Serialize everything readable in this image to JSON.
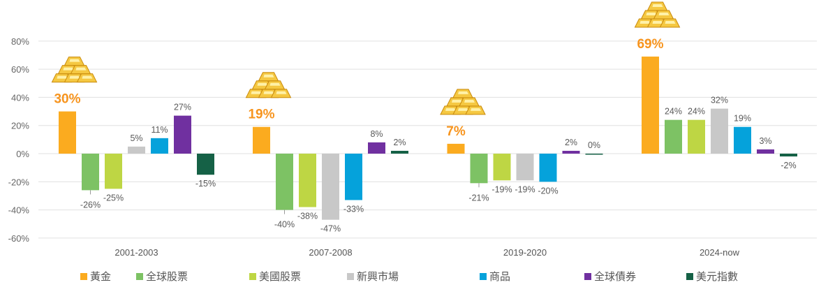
{
  "chart_data": {
    "type": "bar",
    "categories": [
      "2001-2003",
      "2007-2008",
      "2019-2020",
      "2024-now"
    ],
    "series": [
      {
        "name": "黃金",
        "color": "#FBAB1F",
        "values": [
          30,
          19,
          7,
          69
        ]
      },
      {
        "name": "全球股票",
        "color": "#7DC264",
        "values": [
          -26,
          -40,
          -21,
          24
        ]
      },
      {
        "name": "美國股票",
        "color": "#BED644",
        "values": [
          -25,
          -38,
          -19,
          24
        ]
      },
      {
        "name": "新興市場",
        "color": "#C8C8C8",
        "values": [
          5,
          -47,
          -19,
          32
        ]
      },
      {
        "name": "商品",
        "color": "#05A2DB",
        "values": [
          11,
          -33,
          -20,
          19
        ]
      },
      {
        "name": "全球債券",
        "color": "#7030A0",
        "values": [
          27,
          8,
          2,
          3
        ]
      },
      {
        "name": "美元指數",
        "color": "#156146",
        "values": [
          -15,
          2,
          0,
          -2
        ]
      }
    ],
    "data_labels": [
      [
        "30%",
        "-26%",
        "-25%",
        "5%",
        "11%",
        "27%",
        "-15%"
      ],
      [
        "19%",
        "-40%",
        "-38%",
        "-47%",
        "-33%",
        "8%",
        "2%"
      ],
      [
        "7%",
        "-21%",
        "-19%",
        "-19%",
        "-20%",
        "2%",
        "0%"
      ],
      [
        "69%",
        "24%",
        "24%",
        "32%",
        "19%",
        "3%",
        "-2%"
      ]
    ],
    "yticks": [
      "80%",
      "60%",
      "40%",
      "20%",
      "0%",
      "-20%",
      "-40%",
      "-60%"
    ],
    "ylim": [
      -60,
      80
    ],
    "grid": true,
    "legend_placement": "bottom",
    "highlight_color": "#F7941D",
    "decoration": "gold-bars-icon above each gold bar"
  }
}
